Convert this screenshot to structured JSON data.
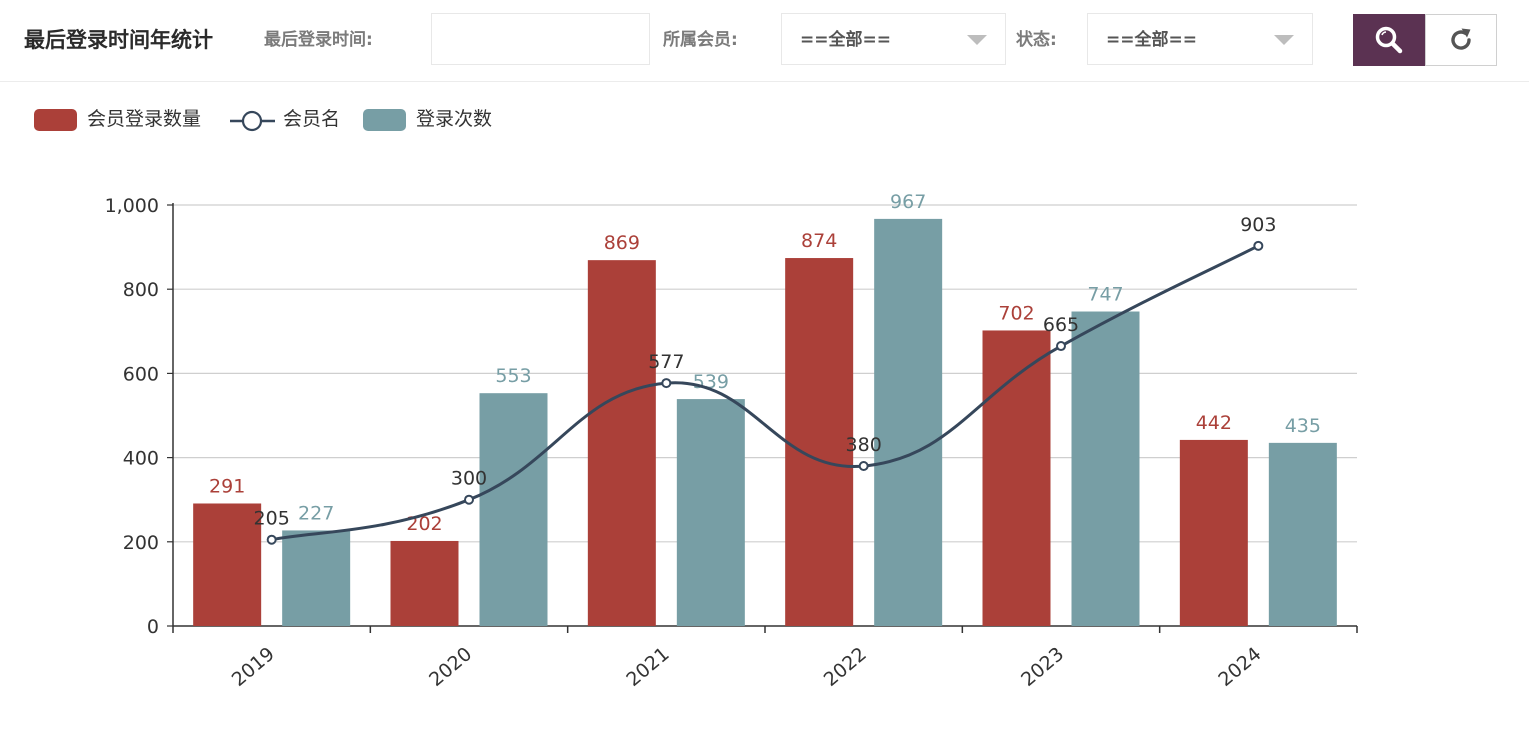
{
  "header": {
    "title": "最后登录时间年统计",
    "filters": {
      "login_time_label": "最后登录时间:",
      "login_time_value": "",
      "member_label": "所属会员:",
      "member_value": "==全部==",
      "status_label": "状态:",
      "status_value": "==全部=="
    },
    "search_icon": "search-icon",
    "reset_icon": "refresh-icon"
  },
  "colors": {
    "member_login_count": "#ab4039",
    "member_name": "#36475b",
    "login_times": "#779ea5",
    "search_button": "#5b3252"
  },
  "legend": [
    {
      "name": "会员登录数量",
      "type": "bar"
    },
    {
      "name": "会员名",
      "type": "line"
    },
    {
      "name": "登录次数",
      "type": "bar"
    }
  ],
  "chart_data": {
    "type": "bar",
    "categories": [
      "2019",
      "2020",
      "2021",
      "2022",
      "2023",
      "2024"
    ],
    "series": [
      {
        "name": "会员登录数量",
        "type": "bar",
        "values": [
          291,
          202,
          869,
          874,
          702,
          442
        ]
      },
      {
        "name": "登录次数",
        "type": "bar",
        "values": [
          227,
          553,
          539,
          967,
          747,
          435
        ]
      },
      {
        "name": "会员名",
        "type": "line",
        "smooth": true,
        "values": [
          205,
          300,
          577,
          380,
          665,
          903
        ]
      }
    ],
    "ylim": [
      0,
      1000
    ],
    "yticks": [
      "0",
      "200",
      "400",
      "600",
      "800",
      "1,000"
    ],
    "grid": true,
    "legend_position": "top-left",
    "xlabel": "",
    "ylabel": ""
  }
}
